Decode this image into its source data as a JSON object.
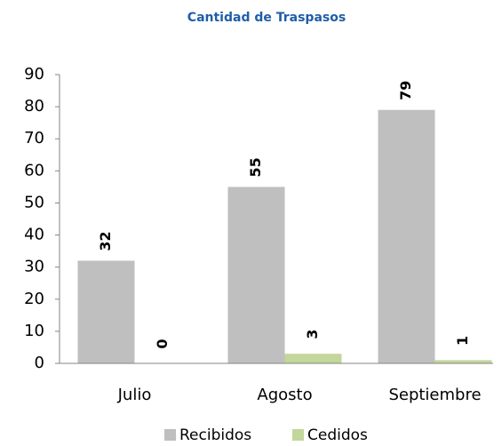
{
  "chart_data": {
    "type": "bar",
    "title": "Cantidad de Traspasos",
    "categories": [
      "Julio",
      "Agosto",
      "Septiembre"
    ],
    "series": [
      {
        "name": "Recibidos",
        "color": "#bfbfbf",
        "values": [
          32,
          55,
          79
        ]
      },
      {
        "name": "Cedidos",
        "color": "#c3d69b",
        "values": [
          0,
          3,
          1
        ]
      }
    ],
    "ylim": [
      0,
      90
    ],
    "yticks": [
      0,
      10,
      20,
      30,
      40,
      50,
      60,
      70,
      80,
      90
    ],
    "legend": "bottom",
    "grid": false
  }
}
